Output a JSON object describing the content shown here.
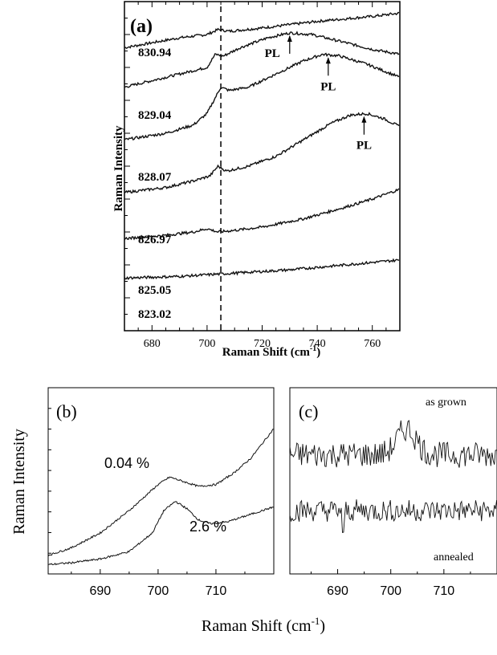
{
  "chart_data": [
    {
      "panel": "(a)",
      "type": "line",
      "xlabel": "Raman Shift (cm",
      "xlabel_sup": "-1",
      "xlabel_tail": ")",
      "ylabel": "Raman Intensity",
      "xlim": [
        670,
        770
      ],
      "x_ticks": [
        680,
        700,
        720,
        740,
        760
      ],
      "dashed_line_x": 705,
      "series": [
        {
          "name": "830.94",
          "points": [
            [
              670,
              0.86
            ],
            [
              680,
              0.875
            ],
            [
              690,
              0.89
            ],
            [
              700,
              0.9
            ],
            [
              704,
              0.915
            ],
            [
              708,
              0.91
            ],
            [
              720,
              0.92
            ],
            [
              740,
              0.94
            ],
            [
              760,
              0.955
            ],
            [
              770,
              0.965
            ]
          ]
        },
        {
          "name": "829.04",
          "points": [
            [
              670,
              0.74
            ],
            [
              685,
              0.77
            ],
            [
              695,
              0.79
            ],
            [
              700,
              0.8
            ],
            [
              703,
              0.84
            ],
            [
              706,
              0.835
            ],
            [
              712,
              0.86
            ],
            [
              722,
              0.89
            ],
            [
              730,
              0.905
            ],
            [
              738,
              0.9
            ],
            [
              748,
              0.88
            ],
            [
              760,
              0.855
            ],
            [
              770,
              0.84
            ]
          ]
        },
        {
          "name": "828.07",
          "points": [
            [
              670,
              0.58
            ],
            [
              685,
              0.6
            ],
            [
              695,
              0.625
            ],
            [
              700,
              0.66
            ],
            [
              705,
              0.74
            ],
            [
              708,
              0.73
            ],
            [
              715,
              0.74
            ],
            [
              725,
              0.78
            ],
            [
              735,
              0.82
            ],
            [
              742,
              0.84
            ],
            [
              748,
              0.835
            ],
            [
              758,
              0.81
            ],
            [
              770,
              0.77
            ]
          ]
        },
        {
          "name": "826.97",
          "points": [
            [
              670,
              0.42
            ],
            [
              685,
              0.435
            ],
            [
              695,
              0.455
            ],
            [
              701,
              0.47
            ],
            [
              704,
              0.5
            ],
            [
              707,
              0.485
            ],
            [
              715,
              0.5
            ],
            [
              725,
              0.53
            ],
            [
              735,
              0.58
            ],
            [
              745,
              0.63
            ],
            [
              752,
              0.655
            ],
            [
              758,
              0.66
            ],
            [
              764,
              0.645
            ],
            [
              770,
              0.62
            ]
          ]
        },
        {
          "name": "825.05",
          "points": [
            [
              670,
              0.28
            ],
            [
              685,
              0.29
            ],
            [
              695,
              0.3
            ],
            [
              700,
              0.31
            ],
            [
              704,
              0.3
            ],
            [
              710,
              0.305
            ],
            [
              720,
              0.315
            ],
            [
              735,
              0.34
            ],
            [
              750,
              0.375
            ],
            [
              760,
              0.4
            ],
            [
              770,
              0.43
            ]
          ]
        },
        {
          "name": "823.02",
          "points": [
            [
              670,
              0.16
            ],
            [
              690,
              0.165
            ],
            [
              710,
              0.175
            ],
            [
              730,
              0.185
            ],
            [
              750,
              0.2
            ],
            [
              770,
              0.215
            ]
          ]
        }
      ],
      "annotations": [
        {
          "text": "PL",
          "x": 730
        },
        {
          "text": "PL",
          "x": 744
        },
        {
          "text": "PL",
          "x": 757
        }
      ]
    },
    {
      "panel": "(b)",
      "type": "line",
      "xlim": [
        681,
        720
      ],
      "x_ticks": [
        690,
        700,
        710
      ],
      "ylabel": "Raman Intensity",
      "series": [
        {
          "name": "0.04 %",
          "points": [
            [
              681,
              0.1
            ],
            [
              685,
              0.14
            ],
            [
              690,
              0.22
            ],
            [
              695,
              0.34
            ],
            [
              700,
              0.48
            ],
            [
              702,
              0.52
            ],
            [
              704,
              0.5
            ],
            [
              707,
              0.47
            ],
            [
              710,
              0.48
            ],
            [
              713,
              0.54
            ],
            [
              716,
              0.62
            ],
            [
              719,
              0.74
            ],
            [
              720,
              0.78
            ]
          ]
        },
        {
          "name": "2.6 %",
          "points": [
            [
              681,
              0.05
            ],
            [
              685,
              0.06
            ],
            [
              690,
              0.08
            ],
            [
              695,
              0.12
            ],
            [
              699,
              0.22
            ],
            [
              701,
              0.34
            ],
            [
              703,
              0.39
            ],
            [
              705,
              0.35
            ],
            [
              707,
              0.29
            ],
            [
              709,
              0.27
            ],
            [
              712,
              0.28
            ],
            [
              716,
              0.32
            ],
            [
              720,
              0.36
            ]
          ]
        }
      ]
    },
    {
      "panel": "(c)",
      "type": "line",
      "xlim": [
        681,
        720
      ],
      "x_ticks": [
        690,
        700,
        710
      ],
      "series": [
        {
          "name": "as grown",
          "baseline": 0.64,
          "peak_x": 703,
          "peak_height": 0.14,
          "noise": 0.07
        },
        {
          "name": "annealed",
          "baseline": 0.34,
          "peak_x": 0,
          "peak_height": 0,
          "noise": 0.06
        }
      ]
    }
  ],
  "shared_xlabel": "Raman Shift (cm",
  "shared_xlabel_sup": "-1",
  "shared_xlabel_tail": ")",
  "colors": {
    "line": "#111111",
    "axis": "#000000",
    "background": "#ffffff"
  }
}
